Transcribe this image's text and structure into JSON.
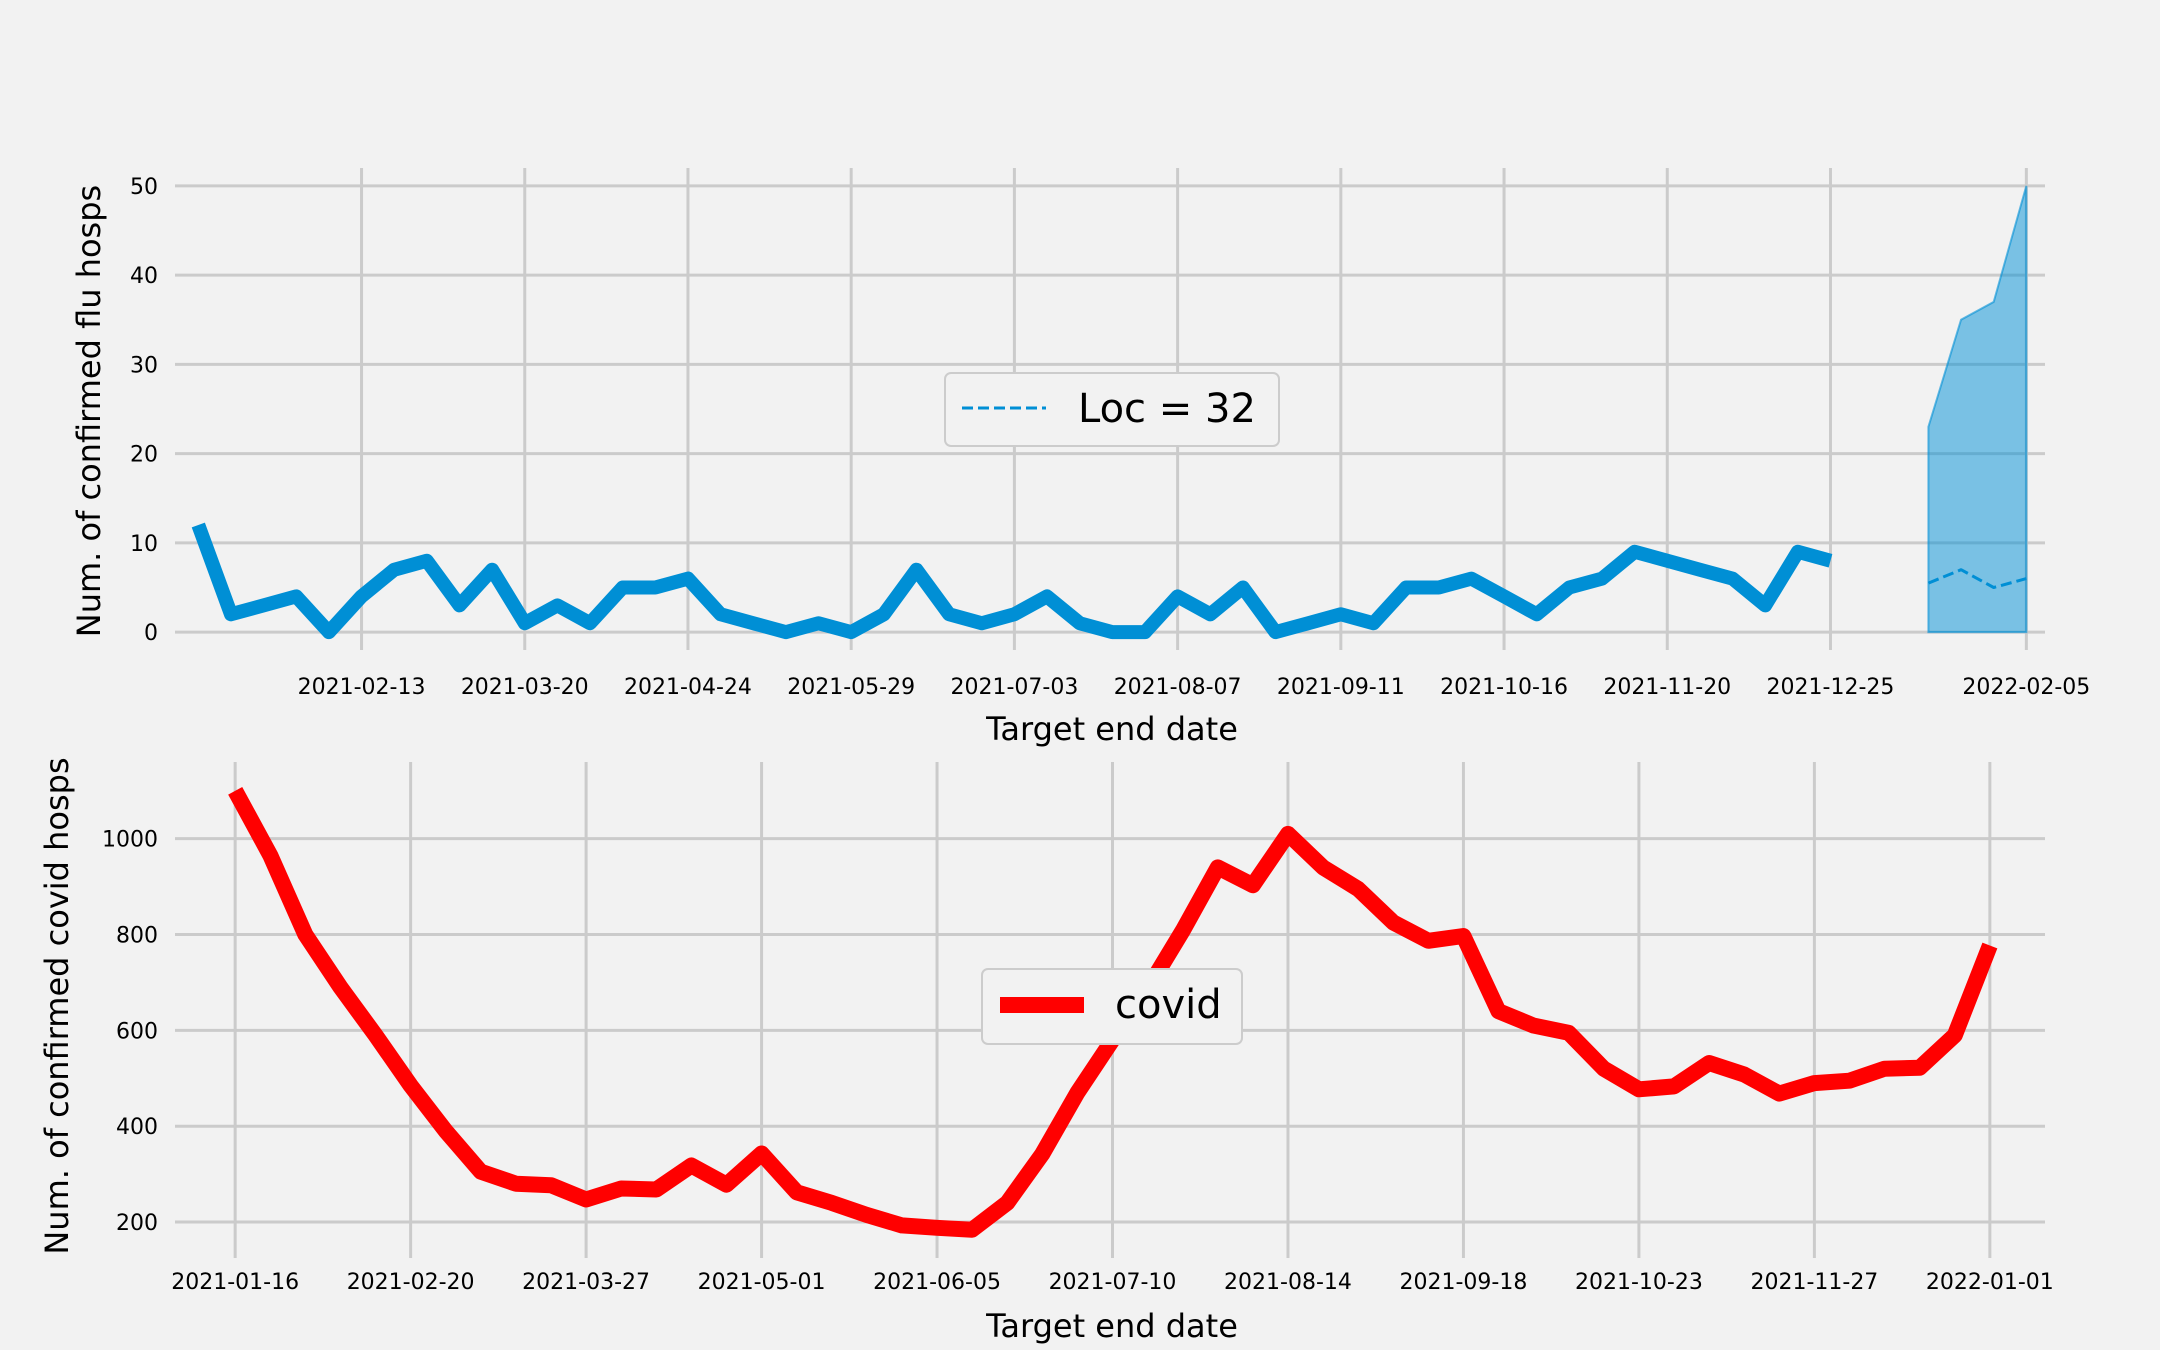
{
  "chart_data": [
    {
      "type": "line",
      "xlabel": "Target end date",
      "ylabel": "Num. of confirmed flu hosps",
      "ylim": [
        -2,
        52
      ],
      "yticks": [
        0,
        10,
        20,
        30,
        40,
        50
      ],
      "xlim": [
        "2021-01-04",
        "2022-02-09"
      ],
      "xticks": [
        "2021-02-13",
        "2021-03-20",
        "2021-04-24",
        "2021-05-29",
        "2021-07-03",
        "2021-08-07",
        "2021-09-11",
        "2021-10-16",
        "2021-11-20",
        "2021-12-25",
        "2022-02-05"
      ],
      "grid": true,
      "legend": {
        "position": "center",
        "entries": [
          "Loc = 32"
        ]
      },
      "series": [
        {
          "style": "solid",
          "color": "#008fd5",
          "x": [
            "2021-01-09",
            "2021-01-16",
            "2021-01-23",
            "2021-01-30",
            "2021-02-06",
            "2021-02-13",
            "2021-02-20",
            "2021-02-27",
            "2021-03-06",
            "2021-03-13",
            "2021-03-20",
            "2021-03-27",
            "2021-04-03",
            "2021-04-10",
            "2021-04-17",
            "2021-04-24",
            "2021-05-01",
            "2021-05-08",
            "2021-05-15",
            "2021-05-22",
            "2021-05-29",
            "2021-06-05",
            "2021-06-12",
            "2021-06-19",
            "2021-06-26",
            "2021-07-03",
            "2021-07-10",
            "2021-07-17",
            "2021-07-24",
            "2021-07-31",
            "2021-08-07",
            "2021-08-14",
            "2021-08-21",
            "2021-08-28",
            "2021-09-04",
            "2021-09-11",
            "2021-09-18",
            "2021-09-25",
            "2021-10-02",
            "2021-10-09",
            "2021-10-16",
            "2021-10-23",
            "2021-10-30",
            "2021-11-06",
            "2021-11-13",
            "2021-11-20",
            "2021-11-27",
            "2021-12-04",
            "2021-12-11",
            "2021-12-18",
            "2021-12-25",
            "2022-01-01"
          ],
          "y": [
            12,
            2,
            3,
            4,
            0,
            4,
            7,
            8,
            3,
            7,
            1,
            3,
            1,
            5,
            5,
            6,
            2,
            1,
            0,
            1,
            0,
            2,
            7,
            2,
            1,
            2,
            4,
            1,
            0,
            0,
            4,
            2,
            5,
            0,
            1,
            2,
            1,
            5,
            5,
            6,
            4,
            2,
            5,
            6,
            9,
            8,
            7,
            6,
            3,
            9,
            8,
            null
          ]
        },
        {
          "name": "Loc = 32",
          "style": "dashed",
          "color": "#008fd5",
          "x": [
            "2022-01-15",
            "2022-01-22",
            "2022-01-29",
            "2022-02-05"
          ],
          "y": [
            5.5,
            7,
            5,
            6
          ]
        }
      ],
      "band": {
        "color": "#008fd5",
        "opacity": 0.5,
        "x": [
          "2022-01-15",
          "2022-01-22",
          "2022-01-29",
          "2022-02-05"
        ],
        "lower": [
          0,
          0,
          0,
          0
        ],
        "upper": [
          23,
          35,
          37,
          50
        ]
      }
    },
    {
      "type": "line",
      "xlabel": "Target end date",
      "ylabel": "Num. of confirmed covid hosps",
      "ylim": [
        125,
        1160
      ],
      "yticks": [
        200,
        400,
        600,
        800,
        1000
      ],
      "xlim": [
        "2021-01-04",
        "2022-01-12"
      ],
      "xticks": [
        "2021-01-16",
        "2021-02-20",
        "2021-03-27",
        "2021-05-01",
        "2021-06-05",
        "2021-07-10",
        "2021-08-14",
        "2021-09-18",
        "2021-10-23",
        "2021-11-27",
        "2022-01-01"
      ],
      "grid": true,
      "legend": {
        "position": "center",
        "entries": [
          "covid"
        ]
      },
      "series": [
        {
          "name": "covid",
          "style": "solid",
          "color": "#ff0000",
          "x": [
            "2021-01-16",
            "2021-01-23",
            "2021-01-30",
            "2021-02-06",
            "2021-02-13",
            "2021-02-20",
            "2021-02-27",
            "2021-03-06",
            "2021-03-13",
            "2021-03-20",
            "2021-03-27",
            "2021-04-03",
            "2021-04-10",
            "2021-04-17",
            "2021-04-24",
            "2021-05-01",
            "2021-05-08",
            "2021-05-15",
            "2021-05-22",
            "2021-05-29",
            "2021-06-05",
            "2021-06-12",
            "2021-06-19",
            "2021-06-26",
            "2021-07-03",
            "2021-07-10",
            "2021-07-17",
            "2021-07-24",
            "2021-07-31",
            "2021-08-07",
            "2021-08-14",
            "2021-08-21",
            "2021-08-28",
            "2021-09-04",
            "2021-09-11",
            "2021-09-18",
            "2021-09-25",
            "2021-10-02",
            "2021-10-09",
            "2021-10-16",
            "2021-10-23",
            "2021-10-30",
            "2021-11-06",
            "2021-11-13",
            "2021-11-20",
            "2021-11-27",
            "2021-12-04",
            "2021-12-11",
            "2021-12-18",
            "2021-12-25",
            "2022-01-01"
          ],
          "y": [
            1100,
            965,
            800,
            690,
            590,
            485,
            390,
            305,
            280,
            277,
            247,
            270,
            268,
            318,
            278,
            343,
            262,
            240,
            215,
            193,
            188,
            184,
            240,
            342,
            470,
            580,
            687,
            808,
            940,
            903,
            1010,
            940,
            895,
            825,
            787,
            797,
            640,
            610,
            595,
            520,
            477,
            483,
            532,
            508,
            468,
            490,
            495,
            520,
            522,
            590,
            777
          ]
        }
      ]
    }
  ]
}
